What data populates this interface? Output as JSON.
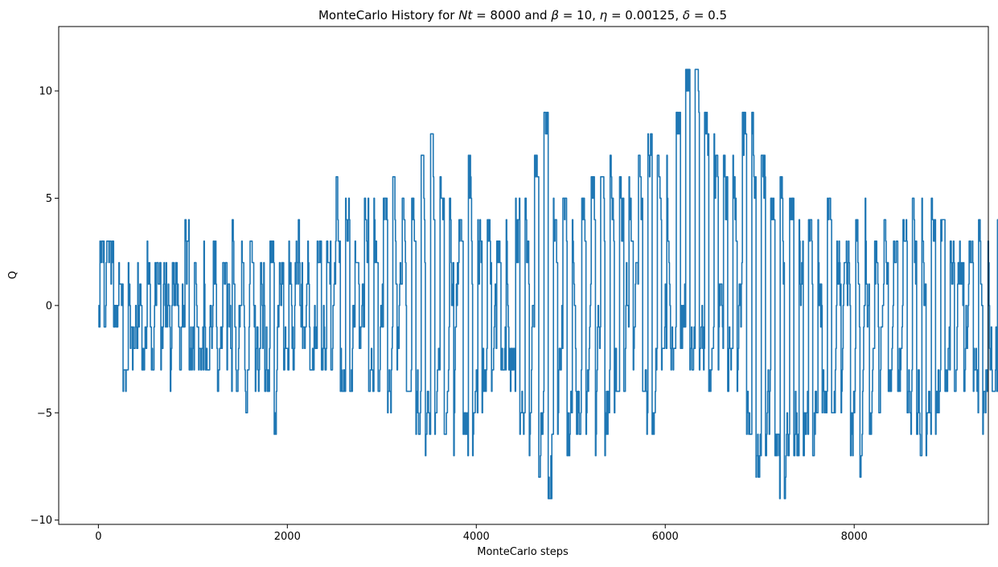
{
  "chart_data": {
    "type": "line",
    "title": "MonteCarlo History for Nt = 8000 and  β = 10, η = 0.00125, δ = 0.5",
    "title_parts": [
      {
        "t": "MonteCarlo History for ",
        "i": false
      },
      {
        "t": "Nt",
        "i": true
      },
      {
        "t": " = 8000 and  ",
        "i": false
      },
      {
        "t": "β",
        "i": true
      },
      {
        "t": " = 10, ",
        "i": false
      },
      {
        "t": "η",
        "i": true
      },
      {
        "t": " = 0.00125, ",
        "i": false
      },
      {
        "t": "δ",
        "i": true
      },
      {
        "t": " = 0.5",
        "i": false
      }
    ],
    "xlabel": "MonteCarlo steps",
    "ylabel": "Q",
    "xlim": [
      -420,
      9420
    ],
    "ylim": [
      -10.2,
      13.0
    ],
    "xticks": [
      0,
      2000,
      4000,
      6000,
      8000
    ],
    "xtick_labels": [
      "0",
      "2000",
      "4000",
      "6000",
      "8000"
    ],
    "yticks": [
      -10,
      -5,
      0,
      5,
      10
    ],
    "ytick_labels": [
      "−10",
      "−5",
      "0",
      "5",
      "10"
    ],
    "grid": false,
    "legend": "none",
    "color": "#1f77b4",
    "x_step": 100,
    "series": [
      {
        "x_start": 0,
        "x_end": 9000,
        "segments": [
          {
            "min": -1,
            "max": 3
          },
          {
            "min": -1,
            "max": 3
          },
          {
            "min": -4,
            "max": 2
          },
          {
            "min": -3,
            "max": 2
          },
          {
            "min": -3,
            "max": 2
          },
          {
            "min": -3,
            "max": 3
          },
          {
            "min": -3,
            "max": 2
          },
          {
            "min": -4,
            "max": 2
          },
          {
            "min": -3,
            "max": 2
          },
          {
            "min": -3,
            "max": 4
          },
          {
            "min": -3,
            "max": 2
          },
          {
            "min": -3,
            "max": 3
          },
          {
            "min": -4,
            "max": 3
          },
          {
            "min": -3,
            "max": 2
          },
          {
            "min": -4,
            "max": 4
          },
          {
            "min": -5,
            "max": 3
          },
          {
            "min": -4,
            "max": 3
          },
          {
            "min": -4,
            "max": 2
          },
          {
            "min": -6,
            "max": 3
          },
          {
            "min": -3,
            "max": 2
          },
          {
            "min": -3,
            "max": 3
          },
          {
            "min": -2,
            "max": 4
          },
          {
            "min": -3,
            "max": 3
          },
          {
            "min": -3,
            "max": 3
          },
          {
            "min": -3,
            "max": 3
          },
          {
            "min": -4,
            "max": 6
          },
          {
            "min": -4,
            "max": 5
          },
          {
            "min": -2,
            "max": 3
          },
          {
            "min": -4,
            "max": 5
          },
          {
            "min": -4,
            "max": 5
          },
          {
            "min": -5,
            "max": 5
          },
          {
            "min": -3,
            "max": 6
          },
          {
            "min": -4,
            "max": 5
          },
          {
            "min": -6,
            "max": 5
          },
          {
            "min": -7,
            "max": 7
          },
          {
            "min": -6,
            "max": 8
          },
          {
            "min": -6,
            "max": 6
          },
          {
            "min": -7,
            "max": 5
          },
          {
            "min": -6,
            "max": 4
          },
          {
            "min": -7,
            "max": 7
          },
          {
            "min": -5,
            "max": 4
          },
          {
            "min": -4,
            "max": 4
          },
          {
            "min": -3,
            "max": 3
          },
          {
            "min": -4,
            "max": 4
          },
          {
            "min": -6,
            "max": 5
          },
          {
            "min": -7,
            "max": 5
          },
          {
            "min": -8,
            "max": 7
          },
          {
            "min": -9,
            "max": 9
          },
          {
            "min": -6,
            "max": 5
          },
          {
            "min": -7,
            "max": 5
          },
          {
            "min": -6,
            "max": 4
          },
          {
            "min": -6,
            "max": 5
          },
          {
            "min": -7,
            "max": 6
          },
          {
            "min": -7,
            "max": 6
          },
          {
            "min": -5,
            "max": 7
          },
          {
            "min": -4,
            "max": 6
          },
          {
            "min": -3,
            "max": 6
          },
          {
            "min": -4,
            "max": 7
          },
          {
            "min": -6,
            "max": 8
          },
          {
            "min": -3,
            "max": 7
          },
          {
            "min": -3,
            "max": 7
          },
          {
            "min": -2,
            "max": 9
          },
          {
            "min": -3,
            "max": 11
          },
          {
            "min": -3,
            "max": 11
          },
          {
            "min": -4,
            "max": 9
          },
          {
            "min": -3,
            "max": 8
          },
          {
            "min": -4,
            "max": 7
          },
          {
            "min": -4,
            "max": 7
          },
          {
            "min": -6,
            "max": 9
          },
          {
            "min": -8,
            "max": 9
          },
          {
            "min": -7,
            "max": 7
          },
          {
            "min": -7,
            "max": 5
          },
          {
            "min": -9,
            "max": 6
          },
          {
            "min": -7,
            "max": 5
          },
          {
            "min": -7,
            "max": 4
          },
          {
            "min": -7,
            "max": 4
          },
          {
            "min": -5,
            "max": 4
          },
          {
            "min": -5,
            "max": 5
          },
          {
            "min": -5,
            "max": 3
          },
          {
            "min": -7,
            "max": 3
          },
          {
            "min": -8,
            "max": 4
          },
          {
            "min": -6,
            "max": 5
          },
          {
            "min": -5,
            "max": 3
          },
          {
            "min": -4,
            "max": 4
          },
          {
            "min": -4,
            "max": 3
          },
          {
            "min": -5,
            "max": 4
          },
          {
            "min": -6,
            "max": 5
          },
          {
            "min": -7,
            "max": 5
          },
          {
            "min": -6,
            "max": 5
          },
          {
            "min": -4,
            "max": 4
          },
          {
            "min": -4,
            "max": 3
          },
          {
            "min": -4,
            "max": 3
          },
          {
            "min": -4,
            "max": 3
          },
          {
            "min": -6,
            "max": 4
          },
          {
            "min": -4,
            "max": 3
          },
          {
            "min": -4,
            "max": 4
          },
          {
            "min": -5,
            "max": 5
          },
          {
            "min": -5,
            "max": 5
          },
          {
            "min": -5,
            "max": 3
          },
          {
            "min": -4,
            "max": 4
          },
          {
            "min": -6,
            "max": 5
          },
          {
            "min": -8,
            "max": 5
          },
          {
            "min": -6,
            "max": 4
          },
          {
            "min": -7,
            "max": 5
          },
          {
            "min": -6,
            "max": 5
          },
          {
            "min": -5,
            "max": 4
          },
          {
            "min": -5,
            "max": 5
          },
          {
            "min": -5,
            "max": 5
          },
          {
            "min": -6,
            "max": 6
          },
          {
            "min": -4,
            "max": 6
          },
          {
            "min": -4,
            "max": 6
          },
          {
            "min": -3,
            "max": 6
          },
          {
            "min": -7,
            "max": 5
          },
          {
            "min": -4,
            "max": 3
          },
          {
            "min": -4,
            "max": 4
          },
          {
            "min": -5,
            "max": 4
          },
          {
            "min": -4,
            "max": 3
          },
          {
            "min": -5,
            "max": 4
          },
          {
            "min": -4,
            "max": 4
          },
          {
            "min": -4,
            "max": 4
          },
          {
            "min": -5,
            "max": 6
          },
          {
            "min": -8,
            "max": 6
          },
          {
            "min": -5,
            "max": 5
          },
          {
            "min": -5,
            "max": 4
          },
          {
            "min": -5,
            "max": 5
          },
          {
            "min": -6,
            "max": 3
          },
          {
            "min": -6,
            "max": 4
          },
          {
            "min": -5,
            "max": 5
          },
          {
            "min": -5,
            "max": 4
          },
          {
            "min": -4,
            "max": 5
          },
          {
            "min": -4,
            "max": 5
          },
          {
            "min": -4,
            "max": 5
          },
          {
            "min": -4,
            "max": 5
          },
          {
            "min": -4,
            "max": 5
          },
          {
            "min": -5,
            "max": 5
          },
          {
            "min": -3,
            "max": 5
          },
          {
            "min": -2,
            "max": 4
          },
          {
            "min": -3,
            "max": 5
          },
          {
            "min": -3,
            "max": 5
          },
          {
            "min": -3,
            "max": 5
          },
          {
            "min": -3,
            "max": 5
          },
          {
            "min": -2,
            "max": 5
          },
          {
            "min": -3,
            "max": 5
          },
          {
            "min": -3,
            "max": 4
          },
          {
            "min": -3,
            "max": 5
          },
          {
            "min": -3,
            "max": 6
          },
          {
            "min": -2,
            "max": 8
          },
          {
            "min": -2,
            "max": 7
          },
          {
            "min": -3,
            "max": 7
          },
          {
            "min": -2,
            "max": 6
          },
          {
            "min": -2,
            "max": 6
          },
          {
            "min": -3,
            "max": 7
          },
          {
            "min": -4,
            "max": 6
          },
          {
            "min": -3,
            "max": 7
          },
          {
            "min": -2,
            "max": 6
          },
          {
            "min": -2,
            "max": 5
          },
          {
            "min": -1,
            "max": 6
          },
          {
            "min": -1,
            "max": 5
          },
          {
            "min": -1,
            "max": 5
          },
          {
            "min": -1,
            "max": 6
          },
          {
            "min": -3,
            "max": 9
          },
          {
            "min": -3,
            "max": 10
          },
          {
            "min": -1,
            "max": 9
          },
          {
            "min": -3,
            "max": 9
          },
          {
            "min": -6,
            "max": 10
          },
          {
            "min": -7,
            "max": 9
          },
          {
            "min": -5,
            "max": 9
          },
          {
            "min": -7,
            "max": 8
          },
          {
            "min": -3,
            "max": 9
          },
          {
            "min": -1,
            "max": 9
          },
          {
            "min": -1,
            "max": 8
          },
          {
            "min": -1,
            "max": 10
          },
          {
            "min": -3,
            "max": 10
          },
          {
            "min": -2,
            "max": 9
          },
          {
            "min": -2,
            "max": 12
          },
          {
            "min": -8,
            "max": 9
          },
          {
            "min": -3,
            "max": 9
          },
          {
            "min": -1,
            "max": 9
          },
          {
            "min": -2,
            "max": 8
          },
          {
            "min": -1,
            "max": 6
          },
          {
            "min": -1,
            "max": 6
          },
          {
            "min": -2,
            "max": 5
          },
          {
            "min": -4,
            "max": 5
          },
          {
            "min": -5,
            "max": 4
          },
          {
            "min": -1,
            "max": 4
          },
          {
            "min": 1,
            "max": 6
          }
        ]
      }
    ]
  }
}
